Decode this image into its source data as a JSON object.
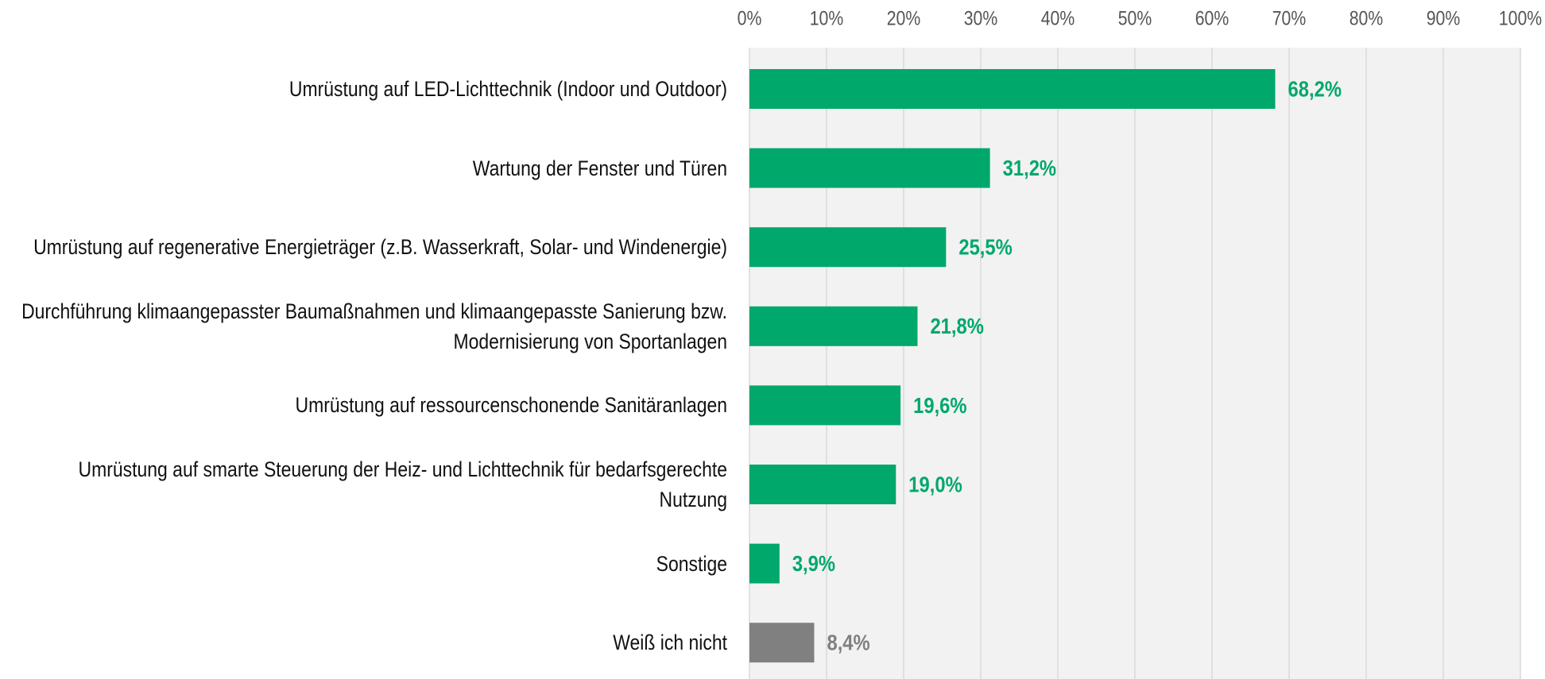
{
  "chart_data": {
    "type": "bar",
    "orientation": "horizontal",
    "categories": [
      "Umrüstung auf LED-Lichttechnik (Indoor und Outdoor)",
      "Wartung der Fenster und Türen ",
      "Umrüstung auf regenerative Energieträger (z.B. Wasserkraft, Solar- und Windenergie)",
      "Durchführung klimaangepasster Baumaßnahmen und klimaangepasste Sanierung bzw. Modernisierung von Sportanlagen",
      "Umrüstung auf ressourcenschonende Sanitäranlagen",
      "Umrüstung auf smarte Steuerung der Heiz- und Lichttechnik für bedarfsgerechte Nutzung",
      "Sonstige",
      "Weiß ich nicht"
    ],
    "values": [
      68.2,
      31.2,
      25.5,
      21.8,
      19.6,
      19.0,
      3.9,
      8.4
    ],
    "value_labels": [
      "68,2%",
      "31,2%",
      "25,5%",
      "21,8%",
      "19,6%",
      "19,0%",
      "3,9%",
      "8,4%"
    ],
    "colors": [
      "#00a86b",
      "#00a86b",
      "#00a86b",
      "#00a86b",
      "#00a86b",
      "#00a86b",
      "#00a86b",
      "#808080"
    ],
    "xlim": [
      0,
      100
    ],
    "xticks": [
      {
        "value": 0,
        "label": "0%"
      },
      {
        "value": 10,
        "label": "10%"
      },
      {
        "value": 20,
        "label": "20%"
      },
      {
        "value": 30,
        "label": "30%"
      },
      {
        "value": 40,
        "label": "40%"
      },
      {
        "value": 50,
        "label": "50%"
      },
      {
        "value": 60,
        "label": "60%"
      },
      {
        "value": 70,
        "label": "70%"
      },
      {
        "value": 80,
        "label": "80%"
      },
      {
        "value": 90,
        "label": "90%"
      },
      {
        "value": 100,
        "label": "100%"
      }
    ],
    "grid": true
  }
}
